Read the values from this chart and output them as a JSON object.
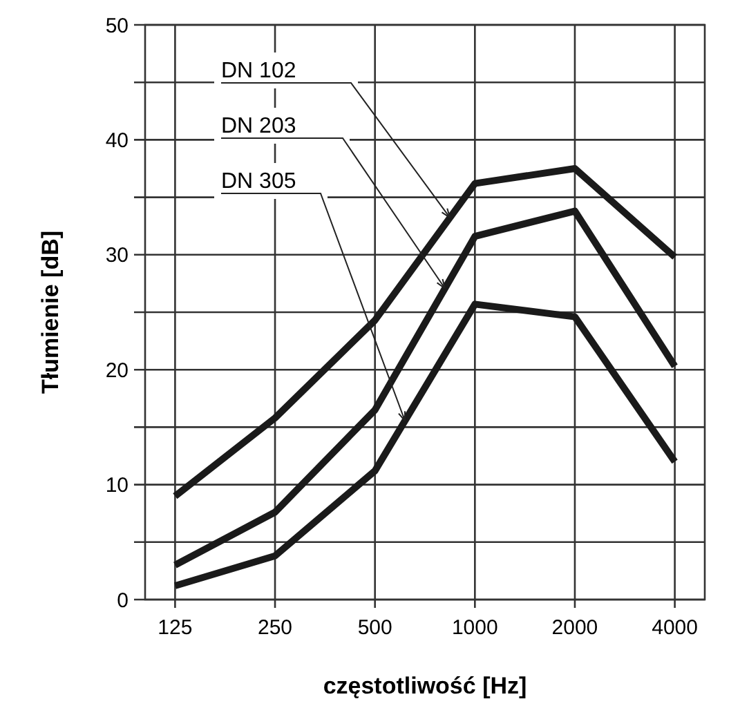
{
  "chart_data": {
    "type": "line",
    "xlabel": "częstotliwość [Hz]",
    "ylabel": "Tłumienie [dB]",
    "categories": [
      "125",
      "250",
      "500",
      "1000",
      "2000",
      "4000"
    ],
    "ylim": [
      0,
      50
    ],
    "yticks": [
      0,
      {
        "value": 5,
        "label": null
      },
      10,
      {
        "value": 15,
        "label": null
      },
      20,
      {
        "value": 25,
        "label": null
      },
      30,
      {
        "value": 35,
        "label": null
      },
      40,
      {
        "value": 45,
        "label": null
      },
      50
    ],
    "grid": true,
    "marker": "none",
    "line_style": "solid",
    "series": [
      {
        "name": "DN 102",
        "color": "#1a1a1a",
        "values": [
          9,
          15.8,
          24.3,
          36.2,
          37.5,
          29.8
        ]
      },
      {
        "name": "DN 203",
        "color": "#1a1a1a",
        "values": [
          3,
          7.6,
          16.5,
          31.6,
          33.8,
          20.3
        ]
      },
      {
        "name": "DN 305",
        "color": "#1a1a1a",
        "values": [
          1.2,
          3.8,
          11.2,
          25.7,
          24.6,
          12
        ]
      }
    ]
  }
}
